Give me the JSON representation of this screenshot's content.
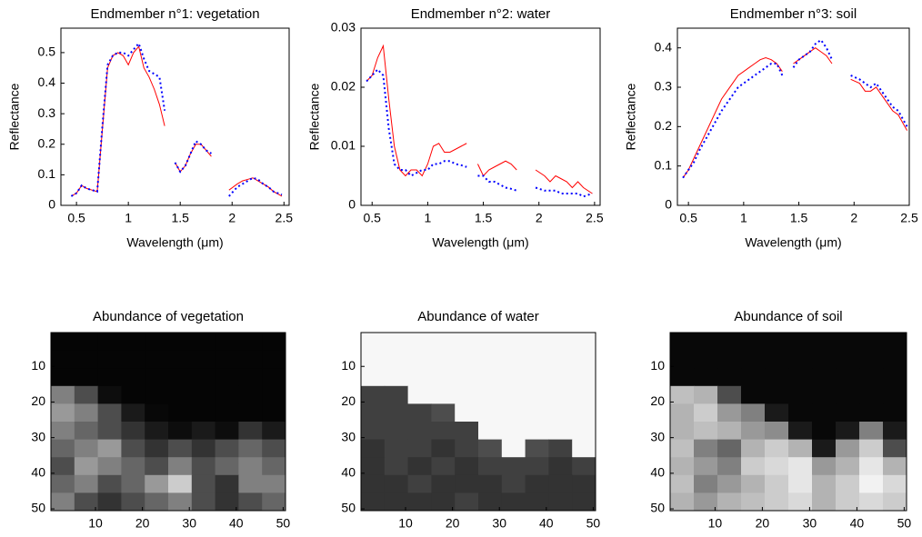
{
  "chart_data": [
    {
      "type": "line",
      "title": "Endmember n°1: vegetation",
      "x_label": "Wavelength (μm)",
      "y_label": "Reflectance",
      "x": [
        0.45,
        0.5,
        0.55,
        0.6,
        0.65,
        0.7,
        0.75,
        0.8,
        0.85,
        0.9,
        0.95,
        1.0,
        1.05,
        1.1,
        1.15,
        1.2,
        1.25,
        1.3,
        1.35,
        1.4,
        1.45,
        1.5,
        1.55,
        1.6,
        1.65,
        1.7,
        1.75,
        1.8,
        1.9,
        1.97,
        2.05,
        2.1,
        2.15,
        2.2,
        2.25,
        2.3,
        2.35,
        2.4,
        2.48
      ],
      "series": [
        {
          "color": "#ff0000",
          "style": "solid",
          "values": [
            0.03,
            0.04,
            0.065,
            0.055,
            0.05,
            0.045,
            0.25,
            0.45,
            0.49,
            0.5,
            0.49,
            0.46,
            0.5,
            0.52,
            0.45,
            0.42,
            0.38,
            0.33,
            0.26,
            null,
            0.14,
            0.11,
            0.13,
            0.17,
            0.2,
            0.2,
            0.18,
            0.16,
            null,
            0.05,
            0.07,
            0.08,
            0.085,
            0.09,
            0.08,
            0.07,
            0.06,
            0.045,
            0.03
          ]
        },
        {
          "color": "#0000ff",
          "style": "dotted",
          "values": [
            0.03,
            0.04,
            0.065,
            0.055,
            0.05,
            0.045,
            0.26,
            0.46,
            0.49,
            0.5,
            0.5,
            0.49,
            0.51,
            0.53,
            0.48,
            0.44,
            0.43,
            0.42,
            0.31,
            null,
            0.14,
            0.11,
            0.13,
            0.17,
            0.21,
            0.2,
            0.18,
            0.17,
            null,
            0.03,
            0.06,
            0.07,
            0.08,
            0.09,
            0.085,
            0.07,
            0.06,
            0.045,
            0.035
          ]
        }
      ],
      "xlim": [
        0.35,
        2.55
      ],
      "xticks": [
        0.5,
        1,
        1.5,
        2,
        2.5
      ],
      "ylim": [
        0,
        0.58
      ],
      "yticks": [
        0,
        0.1,
        0.2,
        0.3,
        0.4,
        0.5
      ]
    },
    {
      "type": "line",
      "title": "Endmember n°2: water",
      "x_label": "Wavelength (μm)",
      "y_label": "Reflectance",
      "x": [
        0.45,
        0.5,
        0.55,
        0.6,
        0.65,
        0.7,
        0.75,
        0.8,
        0.85,
        0.9,
        0.95,
        1.0,
        1.05,
        1.1,
        1.15,
        1.2,
        1.25,
        1.3,
        1.35,
        1.4,
        1.45,
        1.5,
        1.55,
        1.6,
        1.65,
        1.7,
        1.75,
        1.8,
        1.9,
        1.97,
        2.05,
        2.1,
        2.15,
        2.2,
        2.25,
        2.3,
        2.35,
        2.4,
        2.48
      ],
      "series": [
        {
          "color": "#ff0000",
          "style": "solid",
          "values": [
            0.021,
            0.022,
            0.025,
            0.027,
            0.018,
            0.01,
            0.006,
            0.005,
            0.006,
            0.006,
            0.005,
            0.007,
            0.01,
            0.0105,
            0.009,
            0.009,
            0.0095,
            0.01,
            0.0105,
            null,
            0.007,
            0.005,
            0.006,
            0.0065,
            0.007,
            0.0075,
            0.007,
            0.006,
            null,
            0.006,
            0.005,
            0.004,
            0.005,
            0.0045,
            0.004,
            0.003,
            0.004,
            0.003,
            0.002
          ]
        },
        {
          "color": "#0000ff",
          "style": "dotted",
          "values": [
            0.021,
            0.022,
            0.023,
            0.022,
            0.013,
            0.007,
            0.006,
            0.006,
            0.005,
            0.0055,
            0.006,
            0.006,
            0.007,
            0.007,
            0.0075,
            0.0075,
            0.007,
            0.0068,
            0.0065,
            null,
            0.005,
            0.005,
            0.004,
            0.004,
            0.0035,
            0.003,
            0.0028,
            0.0025,
            null,
            0.003,
            0.0025,
            0.0025,
            0.0025,
            0.002,
            0.002,
            0.002,
            0.002,
            0.0015,
            0.002
          ]
        }
      ],
      "xlim": [
        0.4,
        2.55
      ],
      "xticks": [
        0.5,
        1,
        1.5,
        2,
        2.5
      ],
      "ylim": [
        0,
        0.03
      ],
      "yticks": [
        0,
        0.01,
        0.02,
        0.03
      ]
    },
    {
      "type": "line",
      "title": "Endmember n°3: soil",
      "x_label": "Wavelength (μm)",
      "y_label": "Reflectance",
      "x": [
        0.45,
        0.5,
        0.55,
        0.6,
        0.65,
        0.7,
        0.75,
        0.8,
        0.85,
        0.9,
        0.95,
        1.0,
        1.05,
        1.1,
        1.15,
        1.2,
        1.25,
        1.3,
        1.35,
        1.4,
        1.45,
        1.5,
        1.55,
        1.6,
        1.65,
        1.7,
        1.75,
        1.8,
        1.9,
        1.97,
        2.05,
        2.1,
        2.15,
        2.2,
        2.25,
        2.3,
        2.35,
        2.4,
        2.48
      ],
      "series": [
        {
          "color": "#ff0000",
          "style": "solid",
          "values": [
            0.07,
            0.09,
            0.12,
            0.15,
            0.18,
            0.21,
            0.24,
            0.27,
            0.29,
            0.31,
            0.33,
            0.34,
            0.35,
            0.36,
            0.37,
            0.375,
            0.37,
            0.36,
            0.34,
            null,
            0.36,
            0.37,
            0.38,
            0.39,
            0.4,
            0.39,
            0.38,
            0.36,
            null,
            0.32,
            0.31,
            0.29,
            0.29,
            0.3,
            0.28,
            0.26,
            0.24,
            0.23,
            0.19
          ]
        },
        {
          "color": "#0000ff",
          "style": "dotted",
          "values": [
            0.07,
            0.09,
            0.11,
            0.14,
            0.165,
            0.19,
            0.215,
            0.24,
            0.26,
            0.28,
            0.3,
            0.31,
            0.32,
            0.33,
            0.34,
            0.35,
            0.36,
            0.36,
            0.33,
            null,
            0.35,
            0.37,
            0.38,
            0.39,
            0.41,
            0.42,
            0.4,
            0.37,
            null,
            0.33,
            0.32,
            0.31,
            0.3,
            0.31,
            0.29,
            0.27,
            0.25,
            0.24,
            0.2
          ]
        }
      ],
      "xlim": [
        0.4,
        2.5
      ],
      "xticks": [
        0.5,
        1,
        1.5,
        2,
        2.5
      ],
      "ylim": [
        0,
        0.45
      ],
      "yticks": [
        0,
        0.1,
        0.2,
        0.3,
        0.4
      ]
    },
    {
      "type": "heatmap",
      "title": "Abundance of vegetation",
      "xlim": [
        0.5,
        50.5
      ],
      "xticks": [
        10,
        20,
        30,
        40,
        50
      ],
      "ylim": [
        0.5,
        50.5
      ],
      "yticks": [
        10,
        20,
        30,
        40,
        50
      ],
      "values": [
        [
          0.02,
          0.02,
          0.02,
          0.02,
          0.02,
          0.02,
          0.02,
          0.02,
          0.02,
          0.02
        ],
        [
          0.02,
          0.02,
          0.02,
          0.02,
          0.02,
          0.02,
          0.02,
          0.02,
          0.02,
          0.02
        ],
        [
          0.02,
          0.02,
          0.02,
          0.02,
          0.02,
          0.02,
          0.02,
          0.02,
          0.02,
          0.02
        ],
        [
          0.5,
          0.3,
          0.05,
          0.02,
          0.02,
          0.02,
          0.02,
          0.02,
          0.02,
          0.02
        ],
        [
          0.6,
          0.5,
          0.3,
          0.1,
          0.03,
          0.02,
          0.02,
          0.02,
          0.02,
          0.02
        ],
        [
          0.5,
          0.4,
          0.3,
          0.2,
          0.1,
          0.05,
          0.1,
          0.05,
          0.2,
          0.1
        ],
        [
          0.4,
          0.5,
          0.6,
          0.3,
          0.2,
          0.3,
          0.2,
          0.3,
          0.4,
          0.3
        ],
        [
          0.3,
          0.6,
          0.5,
          0.4,
          0.3,
          0.5,
          0.3,
          0.4,
          0.5,
          0.4
        ],
        [
          0.4,
          0.5,
          0.3,
          0.4,
          0.6,
          0.8,
          0.3,
          0.2,
          0.5,
          0.5
        ],
        [
          0.5,
          0.3,
          0.2,
          0.3,
          0.4,
          0.5,
          0.3,
          0.2,
          0.3,
          0.4
        ]
      ]
    },
    {
      "type": "heatmap",
      "title": "Abundance of water",
      "xlim": [
        0.5,
        50.5
      ],
      "xticks": [
        10,
        20,
        30,
        40,
        50
      ],
      "ylim": [
        0.5,
        50.5
      ],
      "yticks": [
        10,
        20,
        30,
        40,
        50
      ],
      "values": [
        [
          0.97,
          0.97,
          0.97,
          0.97,
          0.97,
          0.97,
          0.97,
          0.97,
          0.97,
          0.97
        ],
        [
          0.97,
          0.97,
          0.97,
          0.97,
          0.97,
          0.97,
          0.97,
          0.97,
          0.97,
          0.97
        ],
        [
          0.97,
          0.97,
          0.97,
          0.97,
          0.97,
          0.97,
          0.97,
          0.97,
          0.97,
          0.97
        ],
        [
          0.25,
          0.25,
          0.97,
          0.97,
          0.97,
          0.97,
          0.97,
          0.97,
          0.97,
          0.97
        ],
        [
          0.25,
          0.25,
          0.25,
          0.3,
          0.97,
          0.97,
          0.97,
          0.97,
          0.97,
          0.97
        ],
        [
          0.25,
          0.25,
          0.25,
          0.25,
          0.25,
          0.97,
          0.97,
          0.97,
          0.97,
          0.97
        ],
        [
          0.2,
          0.25,
          0.25,
          0.2,
          0.25,
          0.3,
          0.97,
          0.3,
          0.25,
          0.97
        ],
        [
          0.2,
          0.25,
          0.2,
          0.25,
          0.2,
          0.25,
          0.25,
          0.25,
          0.2,
          0.25
        ],
        [
          0.2,
          0.2,
          0.25,
          0.2,
          0.2,
          0.2,
          0.25,
          0.2,
          0.2,
          0.2
        ],
        [
          0.2,
          0.2,
          0.2,
          0.2,
          0.25,
          0.2,
          0.2,
          0.2,
          0.2,
          0.2
        ]
      ]
    },
    {
      "type": "heatmap",
      "title": "Abundance of soil",
      "xlim": [
        0.5,
        50.5
      ],
      "xticks": [
        10,
        20,
        30,
        40,
        50
      ],
      "ylim": [
        0.5,
        50.5
      ],
      "yticks": [
        10,
        20,
        30,
        40,
        50
      ],
      "values": [
        [
          0.03,
          0.03,
          0.03,
          0.03,
          0.03,
          0.03,
          0.03,
          0.03,
          0.03,
          0.03
        ],
        [
          0.03,
          0.03,
          0.03,
          0.03,
          0.03,
          0.03,
          0.03,
          0.03,
          0.03,
          0.03
        ],
        [
          0.03,
          0.03,
          0.03,
          0.03,
          0.03,
          0.03,
          0.03,
          0.03,
          0.03,
          0.03
        ],
        [
          0.75,
          0.7,
          0.3,
          0.03,
          0.03,
          0.03,
          0.03,
          0.03,
          0.03,
          0.03
        ],
        [
          0.7,
          0.8,
          0.6,
          0.5,
          0.1,
          0.03,
          0.03,
          0.03,
          0.03,
          0.03
        ],
        [
          0.7,
          0.75,
          0.7,
          0.6,
          0.55,
          0.1,
          0.03,
          0.1,
          0.5,
          0.1
        ],
        [
          0.75,
          0.5,
          0.4,
          0.7,
          0.8,
          0.7,
          0.1,
          0.6,
          0.8,
          0.3
        ],
        [
          0.7,
          0.6,
          0.5,
          0.8,
          0.85,
          0.9,
          0.6,
          0.7,
          0.9,
          0.7
        ],
        [
          0.75,
          0.5,
          0.6,
          0.7,
          0.8,
          0.9,
          0.7,
          0.8,
          0.95,
          0.85
        ],
        [
          0.7,
          0.6,
          0.7,
          0.75,
          0.8,
          0.85,
          0.7,
          0.8,
          0.85,
          0.8
        ]
      ]
    }
  ]
}
